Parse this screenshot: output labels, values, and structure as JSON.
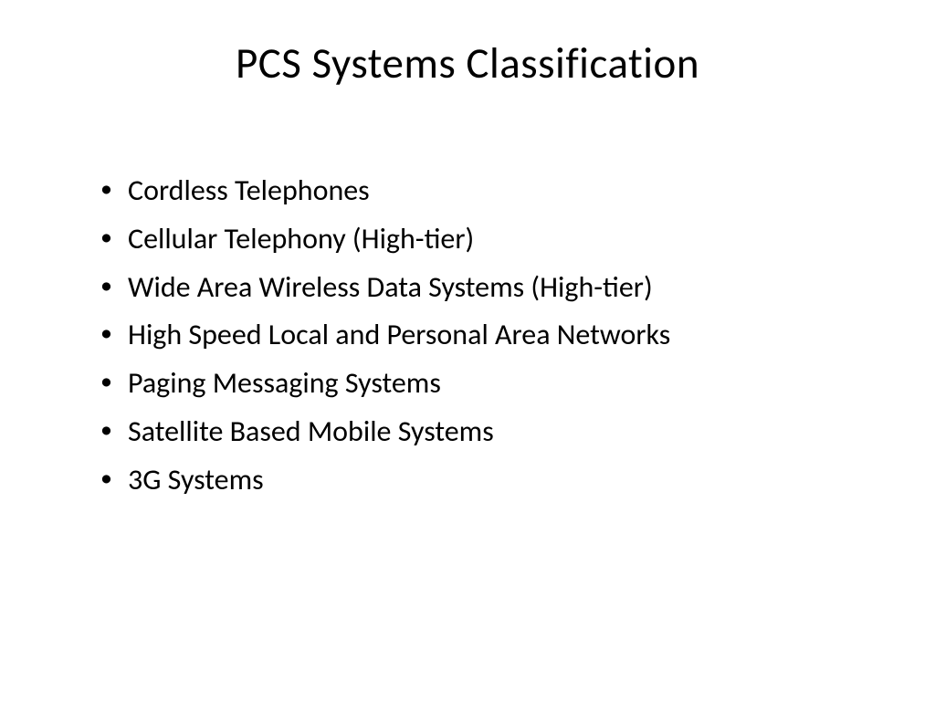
{
  "slide": {
    "title": "PCS Systems Classification",
    "title_fontsize": 47,
    "title_color": "#000000",
    "background_color": "#ffffff",
    "text_color": "#000000",
    "font_family": "Calibri",
    "bullets": [
      "Cordless Telephones",
      "Cellular Telephony (High-tier)",
      "Wide Area Wireless Data Systems (High-tier)",
      "High Speed Local and Personal Area Networks",
      "Paging Messaging Systems",
      "Satellite Based Mobile Systems",
      "3G Systems"
    ],
    "bullet_fontsize": 32,
    "bullet_line_height": 1.65
  }
}
